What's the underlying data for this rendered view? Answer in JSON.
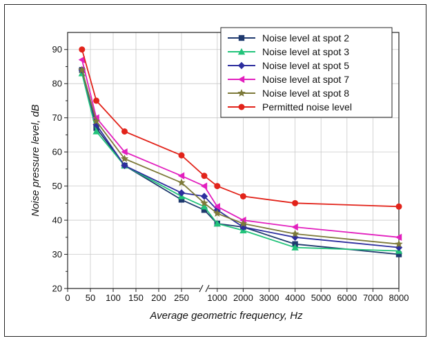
{
  "chart_data": {
    "type": "line",
    "xlabel": "Average geometric frequency, Hz",
    "ylabel": "Noise pressure level, dB",
    "ylim": [
      20,
      95
    ],
    "yticks": [
      20,
      30,
      40,
      50,
      60,
      70,
      80,
      90
    ],
    "x_axis_broken": true,
    "x_segment_1": {
      "range": [
        0,
        300
      ],
      "ticks": [
        "0",
        "50",
        "100",
        "150",
        "200",
        "250"
      ]
    },
    "x_segment_2": {
      "range": [
        500,
        8000
      ],
      "ticks": [
        "1000",
        "2000",
        "3000",
        "4000",
        "5000",
        "6000",
        "7000",
        "8000"
      ]
    },
    "grid": true,
    "legend_position": "top-right",
    "x": [
      31.5,
      63,
      125,
      250,
      500,
      1000,
      2000,
      4000,
      8000
    ],
    "series": [
      {
        "name": "Noise level at spot  2",
        "color": "#1f3a6e",
        "marker": "square",
        "values": [
          84,
          67,
          56,
          46,
          43,
          39,
          38,
          33,
          30
        ]
      },
      {
        "name": "Noise level at spot  3",
        "color": "#22c37a",
        "marker": "triangle-up",
        "values": [
          83,
          66,
          56,
          47,
          44,
          39,
          37,
          32,
          31
        ]
      },
      {
        "name": "Noise level at spot  5",
        "color": "#2d2e9e",
        "marker": "diamond",
        "values": [
          84,
          68,
          56,
          48,
          47,
          43,
          38,
          35,
          32
        ]
      },
      {
        "name": "Noise level at spot  7",
        "color": "#e21fbe",
        "marker": "triangle-left",
        "values": [
          87,
          70,
          60,
          53,
          50,
          44,
          40,
          38,
          35
        ]
      },
      {
        "name": "Noise level at spot  8",
        "color": "#7d7a3a",
        "marker": "star",
        "values": [
          84,
          69,
          58,
          51,
          45,
          42,
          39,
          36,
          33
        ]
      },
      {
        "name": "Permitted noise level",
        "color": "#e2231a",
        "marker": "circle",
        "values": [
          90,
          75,
          66,
          59,
          53,
          50,
          47,
          45,
          44
        ]
      }
    ]
  }
}
